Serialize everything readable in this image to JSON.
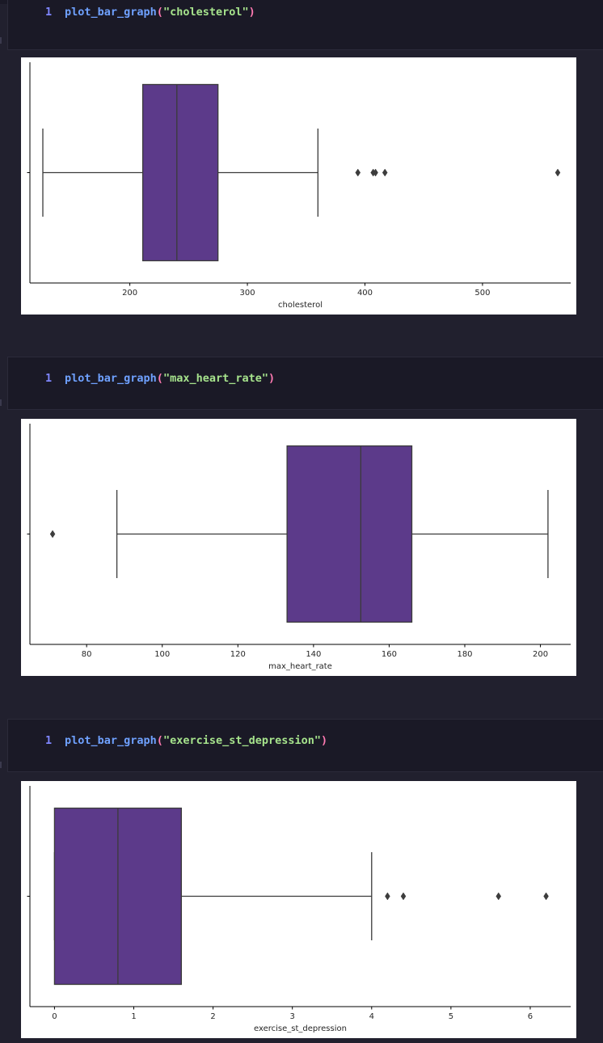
{
  "colors": {
    "background": "#21202e",
    "cell_background": "#1a1926",
    "line_number": "#7f86ff",
    "function": "#6fa1ff",
    "paren": "#ff7ab2",
    "string": "#a6e38c",
    "box_fill": "#5c3a8a",
    "box_edge": "#3a3a3a"
  },
  "cells": [
    {
      "line_number": "1",
      "function": "plot_bar_graph",
      "paren_open": "(",
      "argument": "\"cholesterol\"",
      "paren_close": ")"
    },
    {
      "line_number": "1",
      "function": "plot_bar_graph",
      "paren_open": "(",
      "argument": "\"max_heart_rate\"",
      "paren_close": ")"
    },
    {
      "line_number": "1",
      "function": "plot_bar_graph",
      "paren_open": "(",
      "argument": "\"exercise_st_depression\"",
      "paren_close": ")"
    }
  ],
  "chart_data": [
    {
      "type": "boxplot",
      "xlabel": "cholesterol",
      "ylabel": "",
      "xlim": [
        115,
        575
      ],
      "xticks": [
        200,
        300,
        400,
        500
      ],
      "whisker_low": 126,
      "q1": 211,
      "median": 240,
      "q3": 275,
      "whisker_high": 360,
      "outliers": [
        394,
        407,
        409,
        417,
        564
      ],
      "grid": false,
      "orientation": "horizontal"
    },
    {
      "type": "boxplot",
      "xlabel": "max_heart_rate",
      "ylabel": "",
      "xlim": [
        65,
        208
      ],
      "xticks": [
        80,
        100,
        120,
        140,
        160,
        180,
        200
      ],
      "whisker_low": 88,
      "q1": 133,
      "median": 152.5,
      "q3": 166,
      "whisker_high": 202,
      "outliers": [
        71
      ],
      "grid": false,
      "orientation": "horizontal"
    },
    {
      "type": "boxplot",
      "xlabel": "exercise_st_depression",
      "ylabel": "",
      "xlim": [
        -0.31,
        6.51
      ],
      "xticks": [
        0,
        1,
        2,
        3,
        4,
        5,
        6
      ],
      "whisker_low": 0,
      "q1": 0,
      "median": 0.8,
      "q3": 1.6,
      "whisker_high": 4.0,
      "outliers": [
        4.2,
        4.4,
        5.6,
        6.2
      ],
      "grid": false,
      "orientation": "horizontal"
    }
  ]
}
